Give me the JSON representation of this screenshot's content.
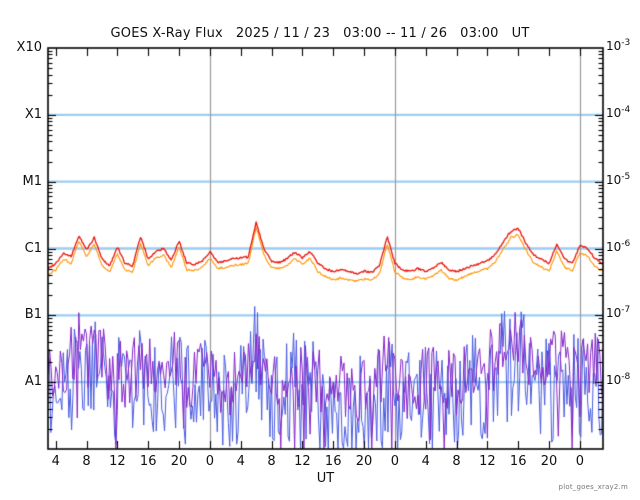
{
  "watermark": "plot_goes_xray2.m",
  "chart_data": {
    "type": "line",
    "title": "GOES X-Ray Flux   2025 / 11 / 23   03:00 -- 11 / 26   03:00   UT",
    "xlabel": "UT",
    "x_start_hour_ut": 3,
    "x_hours_span": 72,
    "y_scale": "log",
    "y_exp_top": -3,
    "y_exp_bottom": -9,
    "grid": "horizontal-decade-lines",
    "legend": "none",
    "gridline_exps": [
      -4,
      -5,
      -6,
      -7,
      -8
    ],
    "day_boundary_elapsed_hours": [
      21,
      45,
      69
    ],
    "colors": {
      "frame": "#000000",
      "gridline": "#9ccdf2",
      "day_line": "#999999",
      "long_primary": "#e8150c",
      "long_secondary": "#ff9400",
      "short_primary": "#4a5ce0",
      "short_secondary": "#8526c8"
    },
    "y_left_labels": [
      {
        "label": "X10",
        "exp": -3
      },
      {
        "label": "X1",
        "exp": -4
      },
      {
        "label": "M1",
        "exp": -5
      },
      {
        "label": "C1",
        "exp": -6
      },
      {
        "label": "B1",
        "exp": -7
      },
      {
        "label": "A1",
        "exp": -8
      }
    ],
    "y_right_labels": [
      {
        "base": "10",
        "exp": "-3",
        "exp_num": -3
      },
      {
        "base": "10",
        "exp": "-4",
        "exp_num": -4
      },
      {
        "base": "10",
        "exp": "-5",
        "exp_num": -5
      },
      {
        "base": "10",
        "exp": "-6",
        "exp_num": -6
      },
      {
        "base": "10",
        "exp": "-7",
        "exp_num": -7
      },
      {
        "base": "10",
        "exp": "-8",
        "exp_num": -8
      }
    ],
    "x_ticks": [
      {
        "label": "4",
        "e": 1
      },
      {
        "label": "8",
        "e": 5
      },
      {
        "label": "12",
        "e": 9
      },
      {
        "label": "16",
        "e": 13
      },
      {
        "label": "20",
        "e": 17
      },
      {
        "label": "0",
        "e": 21
      },
      {
        "label": "4",
        "e": 25
      },
      {
        "label": "8",
        "e": 29
      },
      {
        "label": "12",
        "e": 33
      },
      {
        "label": "16",
        "e": 37
      },
      {
        "label": "20",
        "e": 41
      },
      {
        "label": "0",
        "e": 45
      },
      {
        "label": "4",
        "e": 49
      },
      {
        "label": "8",
        "e": 53
      },
      {
        "label": "12",
        "e": 57
      },
      {
        "label": "16",
        "e": 61
      },
      {
        "label": "20",
        "e": 65
      },
      {
        "label": "0",
        "e": 69
      }
    ],
    "series": [
      {
        "name": "xray-long-wavelength-primary",
        "color_key": "long_primary",
        "unit": 1e-06,
        "sample_interval_hours": 1,
        "values": [
          0.5,
          0.6,
          0.85,
          0.75,
          1.55,
          0.95,
          1.45,
          0.7,
          0.55,
          1.05,
          0.6,
          0.55,
          1.5,
          0.7,
          0.9,
          1.0,
          0.65,
          1.3,
          0.6,
          0.58,
          0.65,
          0.9,
          0.62,
          0.65,
          0.7,
          0.72,
          0.75,
          2.5,
          1.0,
          0.65,
          0.62,
          0.7,
          0.88,
          0.73,
          0.9,
          0.6,
          0.5,
          0.45,
          0.48,
          0.45,
          0.42,
          0.46,
          0.44,
          0.55,
          1.5,
          0.6,
          0.48,
          0.45,
          0.5,
          0.46,
          0.52,
          0.62,
          0.48,
          0.45,
          0.5,
          0.55,
          0.6,
          0.65,
          0.8,
          1.2,
          1.8,
          2.0,
          1.2,
          0.8,
          0.7,
          0.6,
          1.15,
          0.7,
          0.6,
          1.1,
          1.0,
          0.7,
          0.6
        ]
      },
      {
        "name": "xray-long-wavelength-secondary",
        "color_key": "long_secondary",
        "unit": 1e-06,
        "sample_interval_hours": 1,
        "values": [
          0.4,
          0.48,
          0.7,
          0.6,
          1.3,
          0.76,
          1.16,
          0.56,
          0.44,
          0.84,
          0.48,
          0.44,
          1.2,
          0.56,
          0.72,
          0.8,
          0.52,
          1.05,
          0.48,
          0.46,
          0.52,
          0.72,
          0.5,
          0.52,
          0.56,
          0.58,
          0.6,
          2.1,
          0.8,
          0.52,
          0.5,
          0.56,
          0.7,
          0.58,
          0.72,
          0.45,
          0.38,
          0.34,
          0.36,
          0.34,
          0.32,
          0.35,
          0.33,
          0.42,
          1.2,
          0.45,
          0.36,
          0.34,
          0.38,
          0.35,
          0.39,
          0.47,
          0.36,
          0.34,
          0.38,
          0.42,
          0.46,
          0.5,
          0.62,
          0.95,
          1.45,
          1.6,
          0.95,
          0.62,
          0.53,
          0.46,
          0.9,
          0.53,
          0.46,
          0.85,
          0.78,
          0.53,
          0.46
        ]
      },
      {
        "name": "xray-short-wavelength-primary",
        "color_key": "short_primary",
        "unit": 1e-08,
        "sample_interval_hours": 1,
        "render": "noisy-peak-envelope",
        "values": [
          5,
          4,
          6,
          8,
          10,
          6,
          10,
          5,
          4,
          6,
          4,
          4,
          8,
          5,
          6,
          10,
          5,
          11,
          4,
          4,
          5,
          6,
          4,
          4,
          4,
          5,
          6,
          18.5,
          6,
          4,
          4,
          5,
          6,
          4,
          6,
          4,
          3,
          3,
          3,
          3,
          3,
          3,
          3,
          4,
          10,
          4,
          3,
          3,
          4,
          4,
          5,
          6,
          4,
          3,
          4,
          6,
          5,
          6,
          8,
          12,
          15,
          16,
          12,
          8,
          5,
          5,
          7,
          5,
          5,
          7,
          6,
          5,
          5
        ]
      },
      {
        "name": "xray-short-wavelength-secondary",
        "color_key": "short_secondary",
        "unit": 1e-08,
        "sample_interval_hours": 1,
        "render": "noisy-center",
        "values": [
          1.2,
          1.0,
          1.5,
          2.5,
          3.5,
          2.0,
          3.0,
          2.5,
          1.5,
          2.0,
          1.3,
          1.5,
          2.2,
          1.8,
          2.0,
          2.5,
          1.5,
          2.8,
          1.2,
          1.0,
          1.4,
          1.6,
          1.0,
          0.9,
          1.0,
          1.2,
          1.5,
          4.0,
          2.0,
          1.2,
          1.0,
          1.3,
          1.5,
          1.1,
          1.6,
          1.2,
          0.9,
          0.8,
          0.9,
          0.8,
          0.8,
          0.9,
          0.8,
          1.0,
          2.5,
          1.2,
          0.9,
          0.8,
          1.0,
          1.1,
          1.3,
          1.5,
          1.0,
          0.9,
          1.1,
          1.2,
          1.5,
          2.5,
          2.0,
          2.8,
          3.2,
          3.8,
          3.0,
          2.4,
          1.8,
          1.8,
          2.2,
          2.0,
          2.2,
          2.5,
          2.2,
          2.0,
          1.8
        ]
      }
    ],
    "noise_hints": {
      "blue_downward_depth_decades": 1.75,
      "blue_step_hours": 0.18,
      "purple_spread_decades": 1.0,
      "purple_step_hours": 0.2,
      "red_jitter_decades": 0.03
    }
  }
}
